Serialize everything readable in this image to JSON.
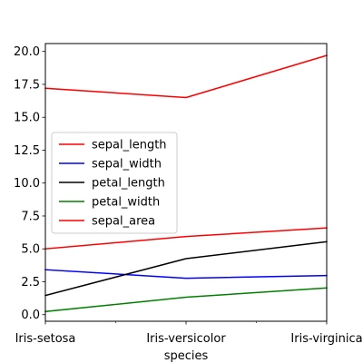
{
  "chart_data": {
    "type": "line",
    "title": "",
    "xlabel": "species",
    "ylabel": "",
    "categories": [
      "Iris-setosa",
      "Iris-versicolor",
      "Iris-virginica"
    ],
    "ylim": [
      -0.5,
      20.6
    ],
    "yticks": [
      0.0,
      2.5,
      5.0,
      7.5,
      10.0,
      12.5,
      15.0,
      17.5,
      20.0
    ],
    "ytick_labels": [
      "0.0",
      "2.5",
      "5.0",
      "7.5",
      "10.0",
      "12.5",
      "15.0",
      "17.5",
      "20.0"
    ],
    "grid": false,
    "legend_position": "center-left",
    "series": [
      {
        "name": "sepal_length",
        "color": "#ff0000",
        "values": [
          5.0,
          5.94,
          6.59
        ]
      },
      {
        "name": "sepal_width",
        "color": "#0000ff",
        "values": [
          3.42,
          2.77,
          2.97
        ]
      },
      {
        "name": "petal_length",
        "color": "#000000",
        "values": [
          1.46,
          4.26,
          5.55
        ]
      },
      {
        "name": "petal_width",
        "color": "#008000",
        "values": [
          0.24,
          1.33,
          2.03
        ]
      },
      {
        "name": "sepal_area",
        "color": "#ff0000",
        "values": [
          17.2,
          16.5,
          19.7
        ]
      }
    ]
  }
}
